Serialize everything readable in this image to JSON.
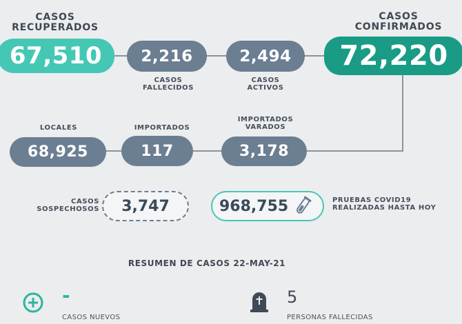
{
  "recuperados": {
    "label": "CASOS\nRECUPERADOS",
    "value": "67,510"
  },
  "fallecidos": {
    "label": "CASOS\nFALLECIDOS",
    "value": "2,216"
  },
  "activos": {
    "label": "CASOS\nACTIVOS",
    "value": "2,494"
  },
  "confirmados": {
    "label": "CASOS\nCONFIRMADOS",
    "value": "72,220"
  },
  "locales": {
    "label": "LOCALES",
    "value": "68,925"
  },
  "importados": {
    "label": "IMPORTADOS",
    "value": "117"
  },
  "importados_varados": {
    "label": "IMPORTADOS\nVARADOS",
    "value": "3,178"
  },
  "sospechosos": {
    "label": "CASOS\nSOSPECHOSOS",
    "value": "3,747"
  },
  "pruebas": {
    "label": "PRUEBAS COVID19\nREALIZADAS HASTA HOY",
    "value": "968,755"
  },
  "resumen": {
    "title": "RESUMEN DE CASOS 22-MAY-21"
  },
  "casos_nuevos": {
    "value": "-",
    "label": "CASOS NUEVOS"
  },
  "personas_fallecidas": {
    "value": "5",
    "label": "PERSONAS FALLECIDAS"
  },
  "colors": {
    "teal": "#45c7b5",
    "dark_teal": "#199b85",
    "slate": "#6b7e92"
  },
  "icons": {
    "plus": "plus-circle-icon",
    "tombstone": "tombstone-icon",
    "test_tube": "test-tube-icon"
  }
}
